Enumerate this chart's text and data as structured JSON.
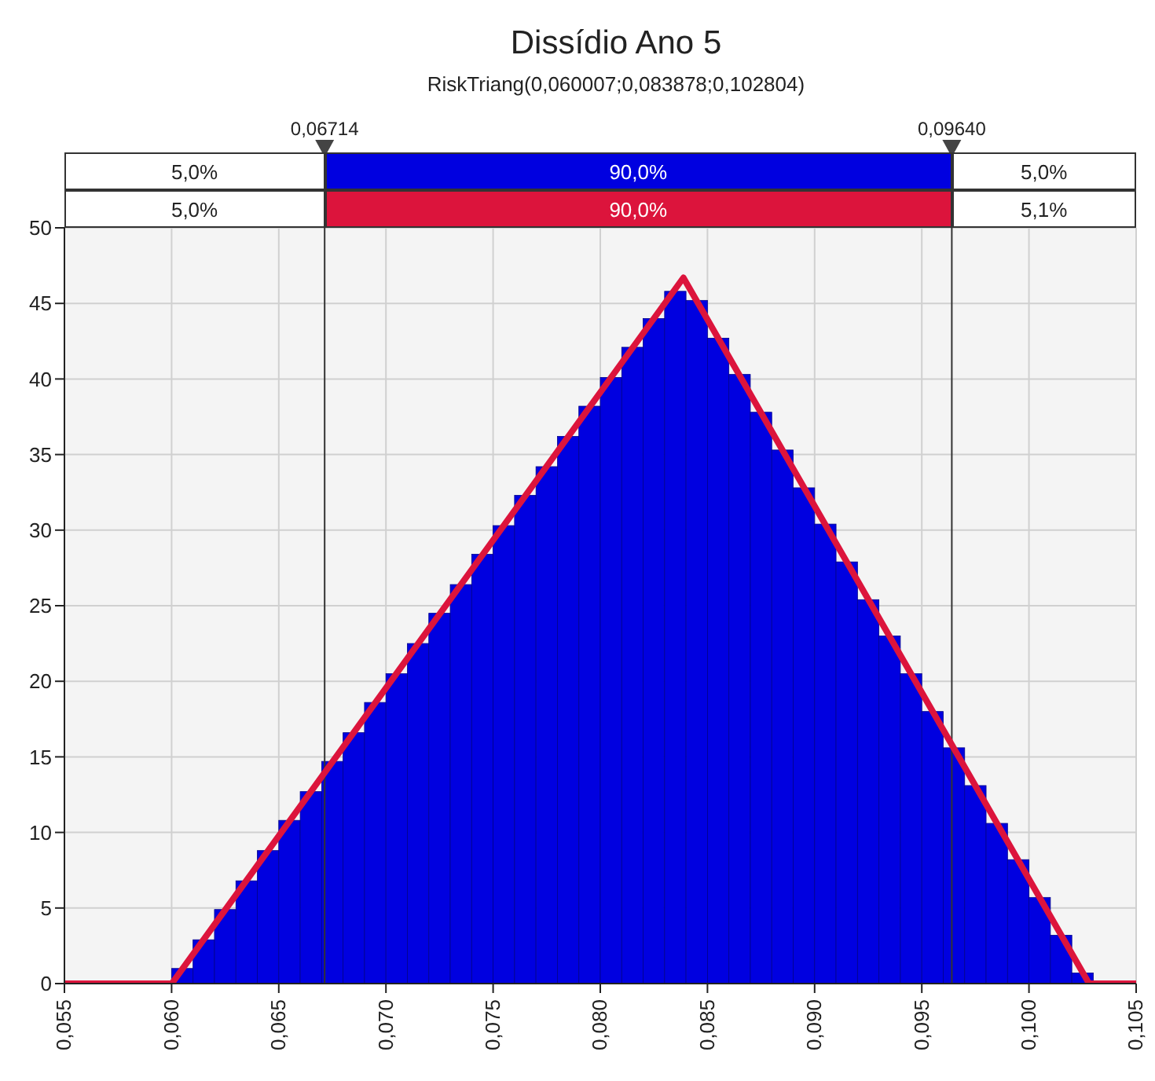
{
  "chart_data": {
    "type": "histogram",
    "title": "Dissídio Ano 5",
    "subtitle": "RiskTriang(0,060007;0,083878;0,102804)",
    "bins": [
      0.06,
      0.061,
      0.062,
      0.063,
      0.064,
      0.065,
      0.066,
      0.067,
      0.068,
      0.069,
      0.07,
      0.071,
      0.072,
      0.073,
      0.074,
      0.075,
      0.076,
      0.077,
      0.078,
      0.079,
      0.08,
      0.081,
      0.082,
      0.083,
      0.084,
      0.085,
      0.086,
      0.087,
      0.088,
      0.089,
      0.09,
      0.091,
      0.092,
      0.093,
      0.094,
      0.095,
      0.096,
      0.097,
      0.098,
      0.099,
      0.1,
      0.101,
      0.102,
      0.103
    ],
    "values": [
      1.0,
      2.9,
      4.9,
      6.8,
      8.8,
      10.8,
      12.7,
      14.7,
      16.6,
      18.6,
      20.5,
      22.5,
      24.5,
      26.4,
      28.4,
      30.3,
      32.3,
      34.2,
      36.2,
      38.2,
      40.1,
      42.1,
      44.0,
      45.8,
      45.2,
      42.7,
      40.3,
      37.8,
      35.3,
      32.8,
      30.4,
      27.9,
      25.4,
      23.0,
      20.5,
      18.0,
      15.6,
      13.1,
      10.6,
      8.2,
      5.7,
      3.2,
      0.7
    ],
    "color": "#0000e0",
    "series": [
      {
        "type": "line",
        "color": "#dc143c",
        "x": [
          0.055,
          0.060007,
          0.083878,
          0.102804,
          0.105
        ],
        "values": [
          0,
          0,
          46.7,
          0,
          0
        ]
      }
    ],
    "ref_lines": [
      {
        "axis": "x",
        "value": 0.06714,
        "label": "0,06714",
        "color": "#333333"
      },
      {
        "axis": "x",
        "value": 0.0964,
        "label": "0,09640",
        "color": "#333333"
      }
    ],
    "annotations": [
      "5,0%",
      "90,0%",
      "5,0%",
      "5,0%",
      "90,0%",
      "5,1%"
    ],
    "xlim": [
      0.055,
      0.105
    ],
    "xticks": [
      {
        "value": 0.055,
        "label": "0,055"
      },
      {
        "value": 0.06,
        "label": "0,060"
      },
      {
        "value": 0.065,
        "label": "0,065"
      },
      {
        "value": 0.07,
        "label": "0,070"
      },
      {
        "value": 0.075,
        "label": "0,075"
      },
      {
        "value": 0.08,
        "label": "0,080"
      },
      {
        "value": 0.085,
        "label": "0,085"
      },
      {
        "value": 0.09,
        "label": "0,090"
      },
      {
        "value": 0.095,
        "label": "0,095"
      },
      {
        "value": 0.1,
        "label": "0,100"
      },
      {
        "value": 0.105,
        "label": "0,105"
      }
    ],
    "ylim": [
      0,
      50
    ],
    "yticks": [
      0,
      5,
      10,
      15,
      20,
      25,
      30,
      35,
      40,
      45,
      50
    ],
    "grid": true
  }
}
